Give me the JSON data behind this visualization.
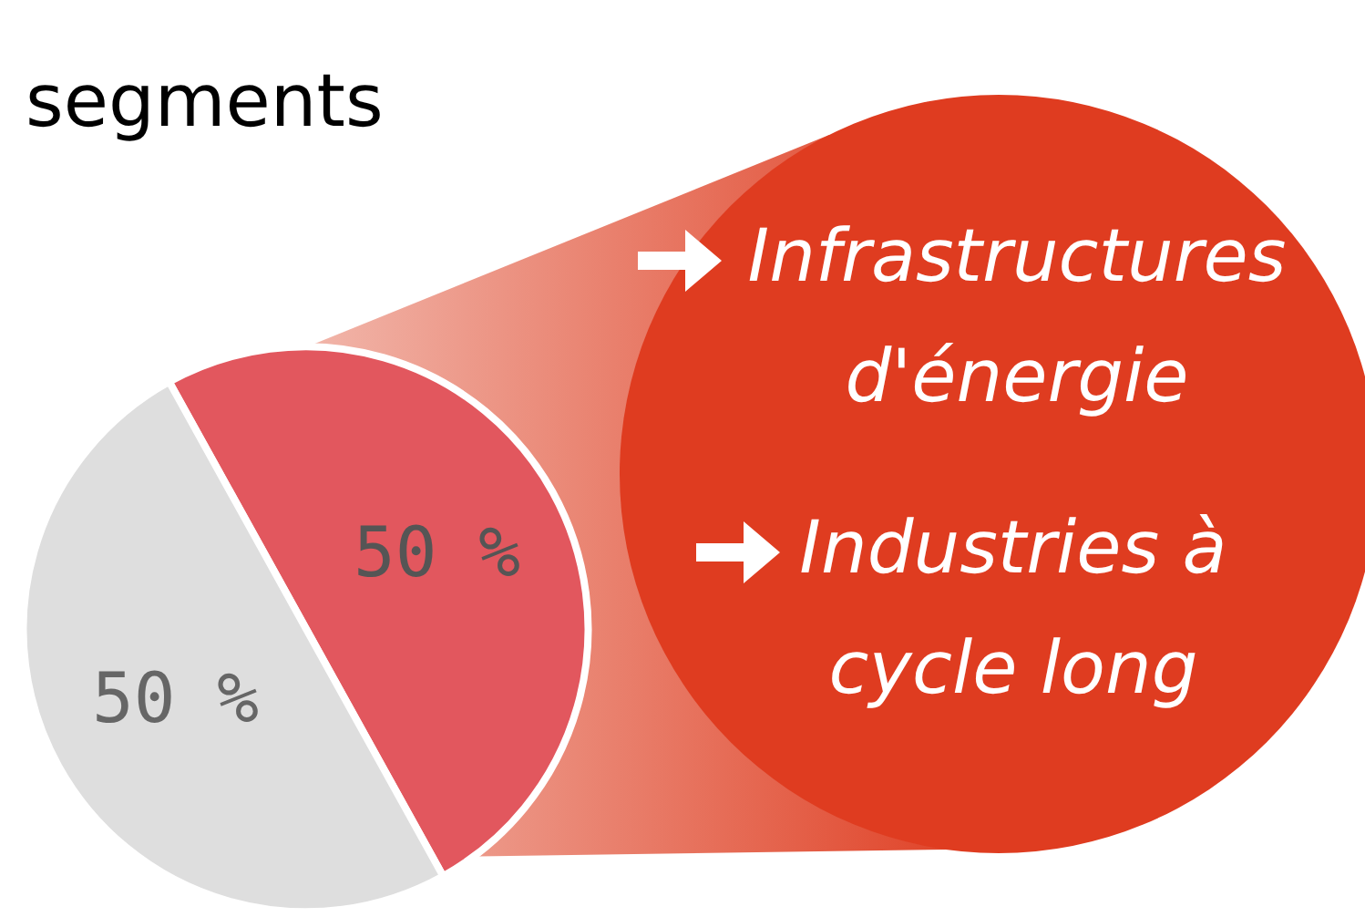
{
  "chart_data": {
    "type": "pie",
    "title": "segments",
    "categories": [
      null,
      null
    ],
    "values": [
      50,
      50
    ],
    "colors": [
      "#e2575e",
      "#dedede"
    ],
    "value_labels": [
      "50 %",
      "50 %"
    ],
    "annotations": [
      "Infrastructures d'énergie",
      "Industries à cycle long"
    ]
  }
}
